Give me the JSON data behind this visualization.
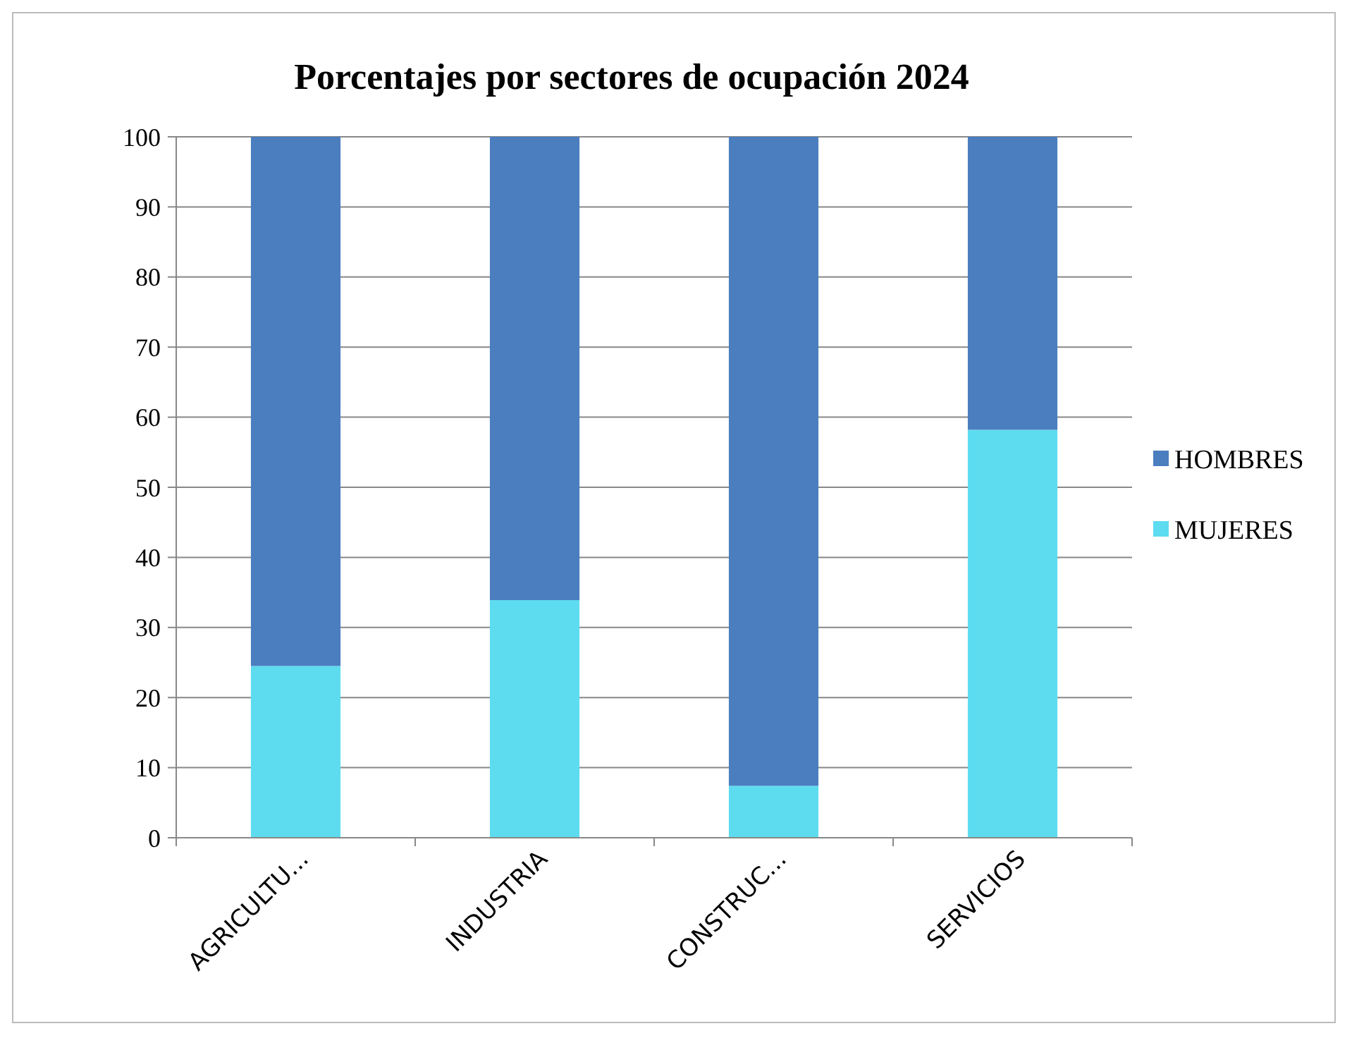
{
  "chart_data": {
    "type": "bar",
    "title": "Porcentajes por sectores de ocupación 2024",
    "categories": [
      "AGRICULTU...",
      "INDUSTRIA",
      "CONSTRUC...",
      "SERVICIOS"
    ],
    "series": [
      {
        "name": "MUJERES",
        "color": "#5ddcf0",
        "values": [
          24.5,
          33.9,
          7.4,
          58.2
        ]
      },
      {
        "name": "HOMBRES",
        "color": "#4a7ebf",
        "values": [
          75.5,
          66.1,
          92.6,
          41.8
        ]
      }
    ],
    "stacked": true,
    "ylim": [
      0,
      100
    ],
    "yticks": [
      0,
      10,
      20,
      30,
      40,
      50,
      60,
      70,
      80,
      90,
      100
    ],
    "grid": "y",
    "legend": "right"
  }
}
